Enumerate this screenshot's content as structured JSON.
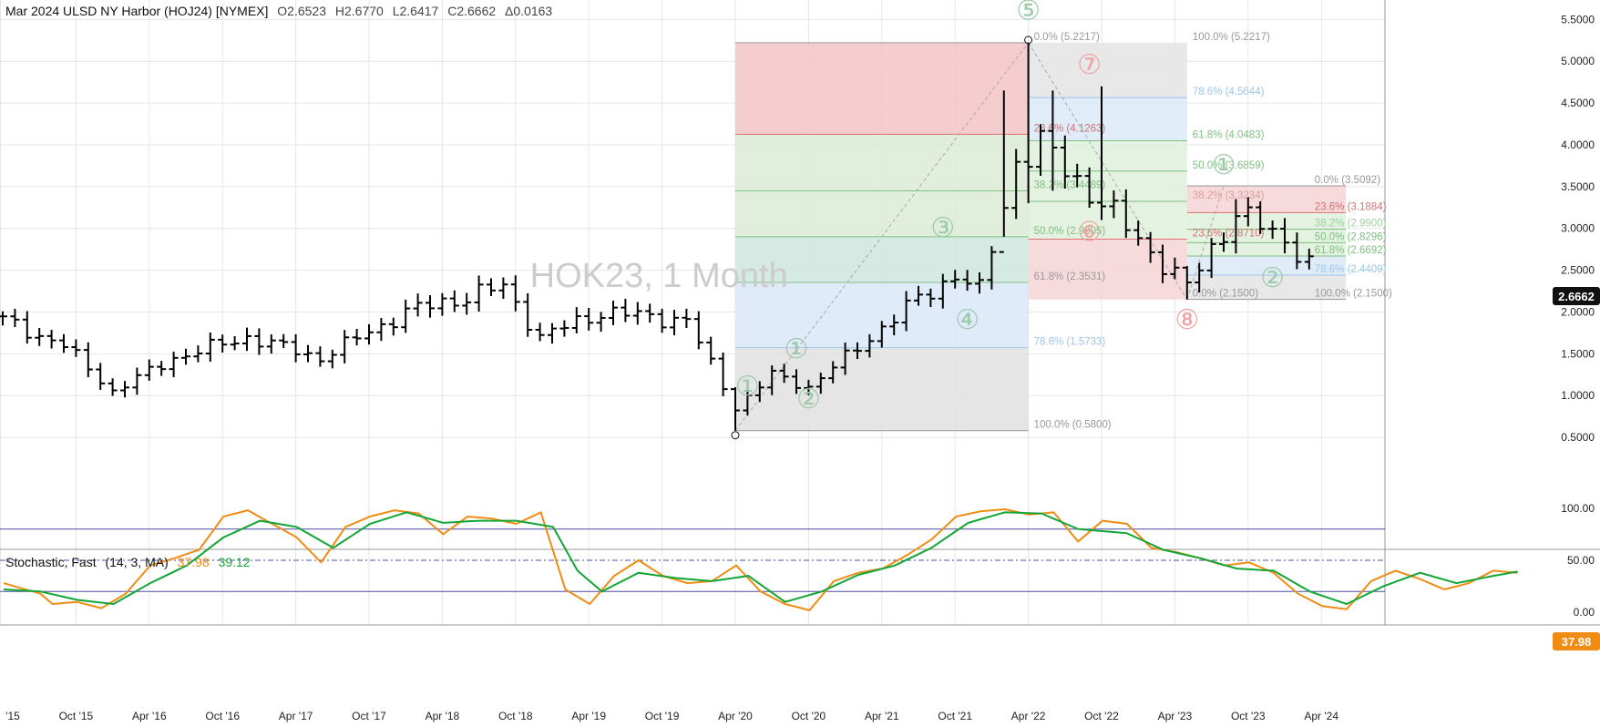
{
  "header": {
    "symbol": "Mar 2024 ULSD NY Harbor (HOJ24) [NYMEX]",
    "open": "O2.6523",
    "high": "H2.6770",
    "low": "L2.6417",
    "close": "C2.6662",
    "change": "Δ0.0163"
  },
  "watermark": "HOK23, 1 Month",
  "price_badge": "2.6662",
  "stoch_badge": "37.98",
  "indicator": {
    "name": "Stochastic, Fast",
    "params": "(14, 3, MA)",
    "k_value": "37.98",
    "d_value": "39.12",
    "k_color": "#f08c14",
    "d_color": "#13a536",
    "y_ticks": [
      "100.00",
      "50.00",
      "0.00"
    ]
  },
  "chart_data": {
    "type": "ohlc",
    "title": "",
    "xlabel": "",
    "ylabel": "",
    "ylim": [
      0.25,
      5.58
    ],
    "x_tick_labels": [
      "'15",
      "Oct '15",
      "Apr '16",
      "Oct '16",
      "Apr '17",
      "Oct '17",
      "Apr '18",
      "Oct '18",
      "Apr '19",
      "Oct '19",
      "Apr '20",
      "Oct '20",
      "Apr '21",
      "Oct '21",
      "Apr '22",
      "Oct '22",
      "Apr '23",
      "Oct '23",
      "Apr '24"
    ],
    "y_tick_labels": [
      "5.5000",
      "5.0000",
      "4.5000",
      "4.0000",
      "3.5000",
      "3.0000",
      "2.5000",
      "2.0000",
      "1.5000",
      "1.0000",
      "0.5000"
    ],
    "bar_color": "#000000",
    "segments": [
      {
        "start": "2015-04",
        "end": "2015-09",
        "from": 1.9,
        "to": 1.6
      },
      {
        "start": "2015-09",
        "end": "2016-01",
        "from": 1.6,
        "to": 1.05
      },
      {
        "start": "2016-01",
        "end": "2016-06",
        "from": 1.05,
        "to": 1.45
      },
      {
        "start": "2016-06",
        "end": "2016-12",
        "from": 1.45,
        "to": 1.7
      },
      {
        "start": "2016-12",
        "end": "2017-06",
        "from": 1.7,
        "to": 1.45
      },
      {
        "start": "2017-06",
        "end": "2018-01",
        "from": 1.45,
        "to": 2.0
      },
      {
        "start": "2018-01",
        "end": "2018-09",
        "from": 2.0,
        "to": 2.3
      },
      {
        "start": "2018-09",
        "end": "2018-12",
        "from": 2.3,
        "to": 1.7
      },
      {
        "start": "2018-12",
        "end": "2019-05",
        "from": 1.7,
        "to": 2.0
      },
      {
        "start": "2019-05",
        "end": "2019-12",
        "from": 2.0,
        "to": 1.9
      },
      {
        "start": "2019-12",
        "end": "2020-04",
        "from": 1.9,
        "to": 0.85
      },
      {
        "start": "2020-04",
        "end": "2020-07",
        "from": 0.85,
        "to": 1.25
      },
      {
        "start": "2020-07",
        "end": "2020-10",
        "from": 1.25,
        "to": 1.1
      },
      {
        "start": "2020-10",
        "end": "2021-06",
        "from": 1.1,
        "to": 2.05
      },
      {
        "start": "2021-06",
        "end": "2021-10",
        "from": 2.05,
        "to": 2.45
      },
      {
        "start": "2021-10",
        "end": "2021-12",
        "from": 2.45,
        "to": 2.25
      },
      {
        "start": "2021-12",
        "end": "2022-03",
        "from": 2.25,
        "to": 3.8
      },
      {
        "start": "2022-03",
        "end": "2022-05",
        "from": 3.8,
        "to": 4.0
      },
      {
        "start": "2022-05",
        "end": "2022-10",
        "from": 4.0,
        "to": 3.3
      },
      {
        "start": "2022-10",
        "end": "2023-05",
        "from": 3.3,
        "to": 2.3
      },
      {
        "start": "2023-05",
        "end": "2023-09",
        "from": 2.3,
        "to": 3.2
      },
      {
        "start": "2023-09",
        "end": "2024-03",
        "from": 3.2,
        "to": 2.6662
      }
    ],
    "spikes": [
      {
        "date": "2020-04",
        "low": 0.58,
        "high": 1.1
      },
      {
        "date": "2022-02",
        "low": 2.9,
        "high": 4.65
      },
      {
        "date": "2022-04",
        "low": 3.3,
        "high": 5.2217
      },
      {
        "date": "2022-06",
        "low": 3.45,
        "high": 4.65
      },
      {
        "date": "2022-10",
        "low": 3.1,
        "high": 4.7
      },
      {
        "date": "2023-05",
        "low": 2.15,
        "high": 2.55
      },
      {
        "date": "2023-09",
        "low": 2.7,
        "high": 3.35
      }
    ],
    "fib_sets": [
      {
        "start": "2020-04",
        "end": "2022-04",
        "low": 0.58,
        "high": 5.2217,
        "bands": [
          {
            "color": "#f3c4c7",
            "from": 5.2217,
            "to": 4.1263
          },
          {
            "color": "#dcebd6",
            "from": 4.1263,
            "to": 2.9005
          },
          {
            "color": "#cfe6df",
            "from": 2.9005,
            "to": 2.3531
          },
          {
            "color": "#d9e8f7",
            "from": 2.3531,
            "to": 1.5733
          },
          {
            "color": "#e0e0e0",
            "from": 1.5733,
            "to": 0.58
          }
        ],
        "lines": [
          {
            "value": 5.2217,
            "color": "#999999"
          },
          {
            "value": 4.1263,
            "color": "#e07070"
          },
          {
            "value": 3.4489,
            "color": "#7fbf7f"
          },
          {
            "value": 2.9005,
            "color": "#7fbf7f"
          },
          {
            "value": 2.3531,
            "color": "#7fbf7f"
          },
          {
            "value": 1.5733,
            "color": "#9ec5ea"
          },
          {
            "value": 0.58,
            "color": "#999999"
          }
        ]
      },
      {
        "start": "2022-04",
        "end": "2023-05",
        "low": 2.15,
        "high": 5.2217,
        "bands": [
          {
            "color": "#e4e4e4",
            "from": 5.2217,
            "to": 4.5644
          },
          {
            "color": "#dbe9f7",
            "from": 4.5644,
            "to": 4.0483
          },
          {
            "color": "#dff0dc",
            "from": 4.0483,
            "to": 2.871
          },
          {
            "color": "#f6d4d6",
            "from": 2.871,
            "to": 2.15
          }
        ],
        "lines": [
          {
            "value": 4.5644,
            "color": "#9ec5ea"
          },
          {
            "value": 4.0483,
            "color": "#7fbf7f"
          },
          {
            "value": 3.6859,
            "color": "#7fbf7f"
          },
          {
            "value": 3.3234,
            "color": "#7fbf7f"
          },
          {
            "value": 2.871,
            "color": "#e07070"
          }
        ]
      },
      {
        "start": "2023-05",
        "end": "2024-06",
        "low": 2.15,
        "high": 3.5092,
        "bands": [
          {
            "color": "#f6d4d6",
            "from": 3.5092,
            "to": 3.1884
          },
          {
            "color": "#dff0dc",
            "from": 3.1884,
            "to": 2.6692
          },
          {
            "color": "#dbe9f7",
            "from": 2.6692,
            "to": 2.4409
          },
          {
            "color": "#e4e4e4",
            "from": 2.4409,
            "to": 2.15
          }
        ],
        "lines": [
          {
            "value": 3.5092,
            "color": "#999999"
          },
          {
            "value": 3.1884,
            "color": "#e07070"
          },
          {
            "value": 2.99,
            "color": "#7fbf7f"
          },
          {
            "value": 2.8296,
            "color": "#7fbf7f"
          },
          {
            "value": 2.6692,
            "color": "#7fbf7f"
          },
          {
            "value": 2.4409,
            "color": "#9ec5ea"
          },
          {
            "value": 2.15,
            "color": "#999999"
          }
        ]
      }
    ],
    "fib_labels": [
      {
        "text": "0.0% (5.2217)",
        "date": "2022-04",
        "value": 5.2217,
        "color": "#999999"
      },
      {
        "text": "23.6% (4.1263)",
        "date": "2022-04",
        "value": 4.1263,
        "color": "#d17070"
      },
      {
        "text": "38.2% (3.4489)",
        "date": "2022-04",
        "value": 3.4489,
        "color": "#7fbf7f"
      },
      {
        "text": "50.0% (2.9005)",
        "date": "2022-04",
        "value": 2.9005,
        "color": "#7fbf7f"
      },
      {
        "text": "61.8% (2.3531)",
        "date": "2022-04",
        "value": 2.3531,
        "color": "#999999"
      },
      {
        "text": "78.6% (1.5733)",
        "date": "2022-04",
        "value": 1.5733,
        "color": "#9ec5ea"
      },
      {
        "text": "100.0% (0.5800)",
        "date": "2022-04",
        "value": 0.58,
        "color": "#999999"
      },
      {
        "text": "100.0% (5.2217)",
        "date": "2023-05",
        "value": 5.2217,
        "color": "#999999"
      },
      {
        "text": "78.6% (4.5644)",
        "date": "2023-05",
        "value": 4.5644,
        "color": "#9ec5ea"
      },
      {
        "text": "61.8% (4.0483)",
        "date": "2023-05",
        "value": 4.0483,
        "color": "#7fbf7f"
      },
      {
        "text": "50.0% (3.6859)",
        "date": "2023-05",
        "value": 3.6859,
        "color": "#7fbf7f"
      },
      {
        "text": "38.2% (3.3234)",
        "date": "2023-05",
        "value": 3.3234,
        "color": "#d9a0a0"
      },
      {
        "text": "23.6% (2.8710)",
        "date": "2023-05",
        "value": 2.871,
        "color": "#d17070"
      },
      {
        "text": "0.0% (2.1500)",
        "date": "2023-05",
        "value": 2.15,
        "color": "#999999"
      },
      {
        "text": "0.0% (3.5092)",
        "date": "2024-03",
        "value": 3.5092,
        "color": "#999999"
      },
      {
        "text": "23.6% (3.1884)",
        "date": "2024-03",
        "value": 3.1884,
        "color": "#d17070"
      },
      {
        "text": "38.2% (2.9900)",
        "date": "2024-03",
        "value": 2.99,
        "color": "#9fd19f"
      },
      {
        "text": "50.0% (2.8296)",
        "date": "2024-03",
        "value": 2.8296,
        "color": "#7fbf7f"
      },
      {
        "text": "61.8% (2.6692)",
        "date": "2024-03",
        "value": 2.6692,
        "color": "#7fbf7f"
      },
      {
        "text": "78.6% (2.4409)",
        "date": "2024-03",
        "value": 2.4409,
        "color": "#9ec5ea"
      },
      {
        "text": "100.0% (2.1500)",
        "date": "2024-03",
        "value": 2.15,
        "color": "#999999"
      }
    ],
    "waves": [
      {
        "label": "①",
        "date": "2020-05",
        "value": 1.0,
        "color": "#9cc9a8"
      },
      {
        "label": "①",
        "date": "2020-09",
        "value": 1.45,
        "color": "#9cc9a8"
      },
      {
        "label": "②",
        "date": "2020-10",
        "value": 0.85,
        "color": "#9cc9a8"
      },
      {
        "label": "③",
        "date": "2021-09",
        "value": 2.9,
        "color": "#9cc9a8"
      },
      {
        "label": "④",
        "date": "2021-11",
        "value": 1.8,
        "color": "#9cc9a8"
      },
      {
        "label": "⑤",
        "date": "2022-04",
        "value": 5.5,
        "color": "#9cc9a8"
      },
      {
        "label": "⑥",
        "date": "2022-09",
        "value": 2.85,
        "color": "#f0a3a3"
      },
      {
        "label": "⑦",
        "date": "2022-09",
        "value": 4.85,
        "color": "#f0a3a3"
      },
      {
        "label": "⑧",
        "date": "2023-05",
        "value": 1.8,
        "color": "#f0a3a3"
      },
      {
        "label": "①",
        "date": "2023-08",
        "value": 3.65,
        "color": "#9cc9a8"
      },
      {
        "label": "②",
        "date": "2023-12",
        "value": 2.3,
        "color": "#9cc9a8"
      }
    ],
    "stochastic": {
      "ylim": [
        -6,
        106
      ],
      "levels": [
        80,
        50,
        20
      ],
      "k_anchors": [
        [
          0,
          28
        ],
        [
          3,
          18
        ],
        [
          4,
          8
        ],
        [
          6,
          10
        ],
        [
          8,
          4
        ],
        [
          10,
          18
        ],
        [
          12,
          45
        ],
        [
          14,
          52
        ],
        [
          16,
          60
        ],
        [
          18,
          92
        ],
        [
          20,
          98
        ],
        [
          22,
          85
        ],
        [
          24,
          72
        ],
        [
          26,
          48
        ],
        [
          28,
          82
        ],
        [
          30,
          92
        ],
        [
          32,
          98
        ],
        [
          34,
          95
        ],
        [
          36,
          75
        ],
        [
          38,
          92
        ],
        [
          40,
          90
        ],
        [
          42,
          85
        ],
        [
          44,
          96
        ],
        [
          46,
          22
        ],
        [
          48,
          8
        ],
        [
          50,
          35
        ],
        [
          52,
          50
        ],
        [
          54,
          35
        ],
        [
          56,
          28
        ],
        [
          58,
          30
        ],
        [
          60,
          45
        ],
        [
          62,
          20
        ],
        [
          64,
          8
        ],
        [
          66,
          2
        ],
        [
          68,
          30
        ],
        [
          70,
          38
        ],
        [
          72,
          42
        ],
        [
          74,
          55
        ],
        [
          76,
          70
        ],
        [
          78,
          92
        ],
        [
          80,
          97
        ],
        [
          82,
          99
        ],
        [
          84,
          94
        ],
        [
          86,
          96
        ],
        [
          88,
          68
        ],
        [
          90,
          88
        ],
        [
          92,
          85
        ],
        [
          94,
          62
        ],
        [
          96,
          58
        ],
        [
          98,
          52
        ],
        [
          100,
          45
        ],
        [
          102,
          48
        ],
        [
          104,
          38
        ],
        [
          106,
          18
        ],
        [
          108,
          6
        ],
        [
          110,
          3
        ],
        [
          112,
          30
        ],
        [
          114,
          40
        ],
        [
          116,
          32
        ],
        [
          118,
          22
        ],
        [
          120,
          28
        ],
        [
          122,
          40
        ],
        [
          124,
          37.98
        ]
      ],
      "d_anchors": [
        [
          0,
          22
        ],
        [
          3,
          20
        ],
        [
          6,
          12
        ],
        [
          9,
          8
        ],
        [
          12,
          28
        ],
        [
          15,
          45
        ],
        [
          18,
          72
        ],
        [
          21,
          88
        ],
        [
          24,
          82
        ],
        [
          27,
          62
        ],
        [
          30,
          85
        ],
        [
          33,
          96
        ],
        [
          36,
          86
        ],
        [
          39,
          88
        ],
        [
          42,
          88
        ],
        [
          45,
          82
        ],
        [
          47,
          40
        ],
        [
          49,
          20
        ],
        [
          52,
          38
        ],
        [
          55,
          33
        ],
        [
          58,
          30
        ],
        [
          61,
          35
        ],
        [
          64,
          10
        ],
        [
          67,
          20
        ],
        [
          70,
          36
        ],
        [
          73,
          45
        ],
        [
          76,
          62
        ],
        [
          79,
          86
        ],
        [
          82,
          96
        ],
        [
          85,
          95
        ],
        [
          88,
          80
        ],
        [
          90,
          78
        ],
        [
          92,
          76
        ],
        [
          95,
          60
        ],
        [
          98,
          52
        ],
        [
          101,
          42
        ],
        [
          104,
          40
        ],
        [
          107,
          20
        ],
        [
          110,
          8
        ],
        [
          113,
          25
        ],
        [
          116,
          38
        ],
        [
          119,
          28
        ],
        [
          122,
          35
        ],
        [
          124,
          39.12
        ]
      ]
    }
  }
}
